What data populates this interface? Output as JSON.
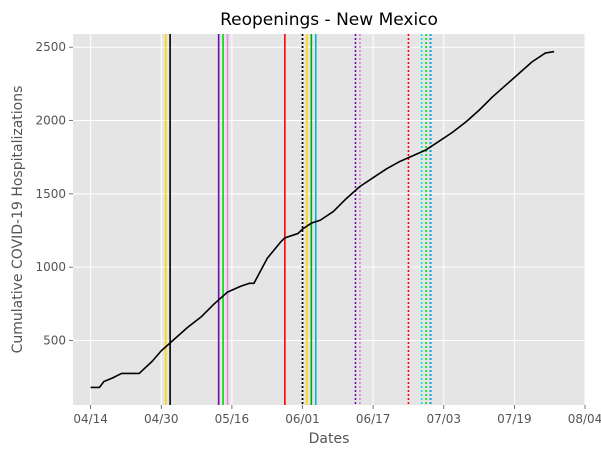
{
  "chart_data": {
    "type": "line",
    "title": "Reopenings - New Mexico",
    "xlabel": "Dates",
    "ylabel": "Cumulative COVID-19 Hospitalizations",
    "x_ticks": [
      "04/14",
      "04/30",
      "05/16",
      "06/01",
      "06/17",
      "07/03",
      "07/19",
      "08/04"
    ],
    "x_tick_days": [
      0,
      16,
      32,
      48,
      64,
      80,
      96,
      112
    ],
    "y_ticks": [
      500,
      1000,
      1500,
      2000,
      2500
    ],
    "xlim": [
      "2020-04-10",
      "2020-08-04"
    ],
    "ylim": [
      60,
      2590
    ],
    "grid": true,
    "legend": "none",
    "colors": {
      "background": "#e5e5e5",
      "grid": "#ffffff",
      "line": "#000000"
    },
    "series": [
      {
        "x": [
          "2020-04-14",
          "2020-04-16",
          "2020-04-17",
          "2020-04-19",
          "2020-04-21",
          "2020-04-25",
          "2020-04-28",
          "2020-04-30",
          "2020-05-03",
          "2020-05-06",
          "2020-05-09",
          "2020-05-12",
          "2020-05-15",
          "2020-05-18",
          "2020-05-20",
          "2020-05-21",
          "2020-05-24",
          "2020-05-27",
          "2020-05-28",
          "2020-05-31",
          "2020-06-01",
          "2020-06-03",
          "2020-06-05",
          "2020-06-08",
          "2020-06-11",
          "2020-06-14",
          "2020-06-17",
          "2020-06-20",
          "2020-06-23",
          "2020-06-26",
          "2020-06-29",
          "2020-07-02",
          "2020-07-05",
          "2020-07-08",
          "2020-07-11",
          "2020-07-14",
          "2020-07-17",
          "2020-07-20",
          "2020-07-23",
          "2020-07-26",
          "2020-07-28"
        ],
        "y": [
          180,
          180,
          220,
          245,
          275,
          275,
          360,
          430,
          510,
          590,
          660,
          750,
          830,
          870,
          890,
          890,
          1060,
          1170,
          1200,
          1230,
          1260,
          1300,
          1320,
          1380,
          1470,
          1550,
          1610,
          1670,
          1720,
          1760,
          1800,
          1860,
          1920,
          1990,
          2070,
          2160,
          2240,
          2320,
          2400,
          2460,
          2470
        ]
      }
    ],
    "vertical_lines": [
      {
        "date": "2020-05-01",
        "color": "#ffd700",
        "style": "solid"
      },
      {
        "date": "2020-05-02",
        "color": "#000000",
        "style": "solid"
      },
      {
        "date": "2020-05-13",
        "color": "#6a0dad",
        "style": "solid"
      },
      {
        "date": "2020-05-14",
        "color": "#00dd00",
        "style": "solid"
      },
      {
        "date": "2020-05-15",
        "color": "#ee82ee",
        "style": "solid"
      },
      {
        "date": "2020-05-28",
        "color": "#ff0000",
        "style": "solid"
      },
      {
        "date": "2020-06-01",
        "color": "#00dd00",
        "style": "dotted"
      },
      {
        "date": "2020-06-01",
        "color": "#000000",
        "style": "dotted"
      },
      {
        "date": "2020-06-02",
        "color": "#ffd700",
        "style": "solid"
      },
      {
        "date": "2020-06-03",
        "color": "#00aa00",
        "style": "solid"
      },
      {
        "date": "2020-06-04",
        "color": "#00b4d8",
        "style": "solid"
      },
      {
        "date": "2020-06-13",
        "color": "#6a0dad",
        "style": "dotted"
      },
      {
        "date": "2020-06-14",
        "color": "#00dd00",
        "style": "dotted"
      },
      {
        "date": "2020-06-14",
        "color": "#ee82ee",
        "style": "dotted"
      },
      {
        "date": "2020-06-25",
        "color": "#ff0000",
        "style": "dotted"
      },
      {
        "date": "2020-06-28",
        "color": "#00e5e5",
        "style": "dotted"
      },
      {
        "date": "2020-06-29",
        "color": "#00dd00",
        "style": "dotted"
      },
      {
        "date": "2020-06-30",
        "color": "#000000",
        "style": "dotted"
      },
      {
        "date": "2020-06-30",
        "color": "#00aaff",
        "style": "dotted"
      }
    ]
  }
}
